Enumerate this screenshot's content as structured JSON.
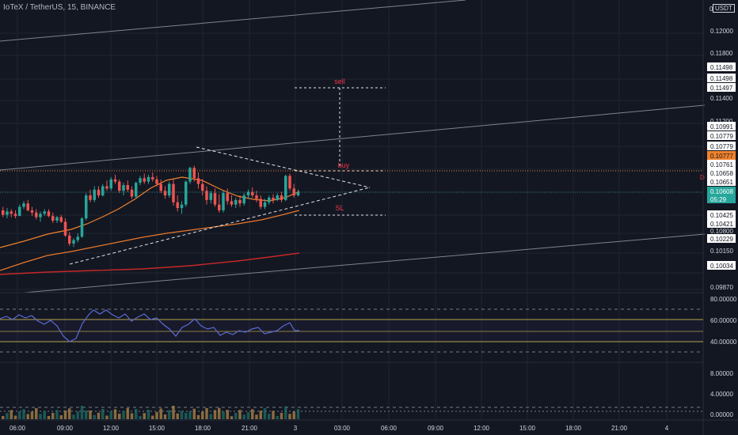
{
  "header": {
    "symbol_line": "IoTeX / TetherUS, 15, BINANCE",
    "currency": "USDT"
  },
  "colors": {
    "background": "#131722",
    "up": "#26a69a",
    "down": "#ef5350",
    "grid": "#1f2430",
    "axis_text": "#d1d4dc",
    "annotation": "#f23645",
    "rsi": "#5b6bd6",
    "ma_orange": "#f0822c",
    "ma_red": "#c62828"
  },
  "price_axis": {
    "ticks": [
      "0.12000",
      "0.11800",
      "0.11400",
      "0.11200",
      "0.10800",
      "0.10150",
      "0.09870"
    ],
    "labels": [
      {
        "text": "0.11498",
        "style": "white"
      },
      {
        "text": "0.11498",
        "style": "white"
      },
      {
        "text": "0.11497",
        "style": "white"
      },
      {
        "text": "0.10991",
        "style": "white"
      },
      {
        "text": "0.10779",
        "style": "white"
      },
      {
        "text": "0.10779",
        "style": "white"
      },
      {
        "text": "0.10777",
        "style": "orange"
      },
      {
        "text": "0.10761",
        "style": "white"
      },
      {
        "text": "0.10658",
        "style": "white"
      },
      {
        "text": "0.10651",
        "style": "white"
      },
      {
        "text": "0.10608",
        "style": "teal"
      },
      {
        "text": "05:29",
        "style": "teal"
      },
      {
        "text": "0.10425",
        "style": "white"
      },
      {
        "text": "0.10421",
        "style": "white"
      },
      {
        "text": "0.10229",
        "style": "white"
      },
      {
        "text": "0.10034",
        "style": "white"
      }
    ],
    "top_label": "0"
  },
  "annotations": {
    "sell": "sell",
    "buy": "buy",
    "sl": "SL",
    "right_marker": "D"
  },
  "rsi_axis": {
    "ticks": [
      "80.00000",
      "60.00000",
      "40.00000"
    ]
  },
  "volume_axis": {
    "ticks": [
      "8.00000",
      "4.00000",
      "0.00000"
    ]
  },
  "time_axis": {
    "ticks": [
      "06:00",
      "09:00",
      "12:00",
      "15:00",
      "18:00",
      "21:00",
      "3",
      "03:00",
      "06:00",
      "09:00",
      "12:00",
      "15:00",
      "18:00",
      "21:00",
      "4"
    ]
  },
  "chart_data": {
    "type": "candlestick",
    "last_price": 0.10608,
    "candles": [
      {
        "o": 0.1045,
        "h": 0.1048,
        "l": 0.1039,
        "c": 0.1041
      },
      {
        "o": 0.1041,
        "h": 0.1047,
        "l": 0.1038,
        "c": 0.1044
      },
      {
        "o": 0.1044,
        "h": 0.1046,
        "l": 0.1039,
        "c": 0.1042
      },
      {
        "o": 0.1042,
        "h": 0.1045,
        "l": 0.1038,
        "c": 0.104
      },
      {
        "o": 0.104,
        "h": 0.105,
        "l": 0.104,
        "c": 0.1048
      },
      {
        "o": 0.1048,
        "h": 0.1053,
        "l": 0.1046,
        "c": 0.1051
      },
      {
        "o": 0.1051,
        "h": 0.1054,
        "l": 0.1044,
        "c": 0.1045
      },
      {
        "o": 0.1045,
        "h": 0.1048,
        "l": 0.104,
        "c": 0.1043
      },
      {
        "o": 0.1043,
        "h": 0.1046,
        "l": 0.1037,
        "c": 0.1039
      },
      {
        "o": 0.1039,
        "h": 0.1044,
        "l": 0.1035,
        "c": 0.1042
      },
      {
        "o": 0.1042,
        "h": 0.1046,
        "l": 0.104,
        "c": 0.1044
      },
      {
        "o": 0.1044,
        "h": 0.1046,
        "l": 0.1039,
        "c": 0.104
      },
      {
        "o": 0.104,
        "h": 0.1043,
        "l": 0.1034,
        "c": 0.1036
      },
      {
        "o": 0.1036,
        "h": 0.104,
        "l": 0.1034,
        "c": 0.1039
      },
      {
        "o": 0.1039,
        "h": 0.1041,
        "l": 0.1034,
        "c": 0.1035
      },
      {
        "o": 0.1035,
        "h": 0.1038,
        "l": 0.1022,
        "c": 0.1023
      },
      {
        "o": 0.1023,
        "h": 0.1026,
        "l": 0.1014,
        "c": 0.1016
      },
      {
        "o": 0.1016,
        "h": 0.1021,
        "l": 0.1013,
        "c": 0.1019
      },
      {
        "o": 0.1019,
        "h": 0.1025,
        "l": 0.1017,
        "c": 0.1022
      },
      {
        "o": 0.1022,
        "h": 0.1039,
        "l": 0.1021,
        "c": 0.1038
      },
      {
        "o": 0.1038,
        "h": 0.106,
        "l": 0.1036,
        "c": 0.1058
      },
      {
        "o": 0.1058,
        "h": 0.1063,
        "l": 0.1052,
        "c": 0.1054
      },
      {
        "o": 0.1054,
        "h": 0.1066,
        "l": 0.1052,
        "c": 0.1063
      },
      {
        "o": 0.1063,
        "h": 0.1066,
        "l": 0.1056,
        "c": 0.1058
      },
      {
        "o": 0.1058,
        "h": 0.1068,
        "l": 0.1057,
        "c": 0.1066
      },
      {
        "o": 0.1066,
        "h": 0.1071,
        "l": 0.1062,
        "c": 0.1064
      },
      {
        "o": 0.1064,
        "h": 0.1074,
        "l": 0.1062,
        "c": 0.1072
      },
      {
        "o": 0.1072,
        "h": 0.1076,
        "l": 0.1068,
        "c": 0.107
      },
      {
        "o": 0.107,
        "h": 0.1072,
        "l": 0.106,
        "c": 0.1062
      },
      {
        "o": 0.1062,
        "h": 0.1069,
        "l": 0.1058,
        "c": 0.1067
      },
      {
        "o": 0.1067,
        "h": 0.1071,
        "l": 0.1061,
        "c": 0.1063
      },
      {
        "o": 0.1063,
        "h": 0.1066,
        "l": 0.1055,
        "c": 0.1057
      },
      {
        "o": 0.1057,
        "h": 0.107,
        "l": 0.1055,
        "c": 0.1069
      },
      {
        "o": 0.1069,
        "h": 0.1075,
        "l": 0.1067,
        "c": 0.1073
      },
      {
        "o": 0.1073,
        "h": 0.1077,
        "l": 0.1068,
        "c": 0.107
      },
      {
        "o": 0.107,
        "h": 0.1076,
        "l": 0.1068,
        "c": 0.1074
      },
      {
        "o": 0.1074,
        "h": 0.1078,
        "l": 0.107,
        "c": 0.1072
      },
      {
        "o": 0.1072,
        "h": 0.1075,
        "l": 0.1066,
        "c": 0.1068
      },
      {
        "o": 0.1068,
        "h": 0.1072,
        "l": 0.106,
        "c": 0.1062
      },
      {
        "o": 0.1062,
        "h": 0.1066,
        "l": 0.1055,
        "c": 0.1058
      },
      {
        "o": 0.1058,
        "h": 0.107,
        "l": 0.1056,
        "c": 0.1068
      },
      {
        "o": 0.1068,
        "h": 0.1072,
        "l": 0.1049,
        "c": 0.1052
      },
      {
        "o": 0.1052,
        "h": 0.1058,
        "l": 0.1044,
        "c": 0.1047
      },
      {
        "o": 0.1047,
        "h": 0.1053,
        "l": 0.1042,
        "c": 0.105
      },
      {
        "o": 0.105,
        "h": 0.1071,
        "l": 0.1048,
        "c": 0.107
      },
      {
        "o": 0.107,
        "h": 0.1083,
        "l": 0.1068,
        "c": 0.1082
      },
      {
        "o": 0.1082,
        "h": 0.1084,
        "l": 0.107,
        "c": 0.1073
      },
      {
        "o": 0.1073,
        "h": 0.1078,
        "l": 0.1064,
        "c": 0.1068
      },
      {
        "o": 0.1068,
        "h": 0.1072,
        "l": 0.1058,
        "c": 0.1062
      },
      {
        "o": 0.1062,
        "h": 0.1066,
        "l": 0.105,
        "c": 0.1054
      },
      {
        "o": 0.1054,
        "h": 0.1062,
        "l": 0.1051,
        "c": 0.106
      },
      {
        "o": 0.106,
        "h": 0.1064,
        "l": 0.1048,
        "c": 0.105
      },
      {
        "o": 0.105,
        "h": 0.1059,
        "l": 0.1043,
        "c": 0.1045
      },
      {
        "o": 0.1045,
        "h": 0.1062,
        "l": 0.1043,
        "c": 0.106
      },
      {
        "o": 0.106,
        "h": 0.1064,
        "l": 0.105,
        "c": 0.1053
      },
      {
        "o": 0.1053,
        "h": 0.1058,
        "l": 0.1048,
        "c": 0.105
      },
      {
        "o": 0.105,
        "h": 0.1056,
        "l": 0.1047,
        "c": 0.1054
      },
      {
        "o": 0.1054,
        "h": 0.1058,
        "l": 0.1048,
        "c": 0.1051
      },
      {
        "o": 0.1051,
        "h": 0.106,
        "l": 0.1049,
        "c": 0.1058
      },
      {
        "o": 0.1058,
        "h": 0.1063,
        "l": 0.1055,
        "c": 0.1061
      },
      {
        "o": 0.1061,
        "h": 0.1065,
        "l": 0.1056,
        "c": 0.1058
      },
      {
        "o": 0.1058,
        "h": 0.1062,
        "l": 0.1052,
        "c": 0.1055
      },
      {
        "o": 0.1055,
        "h": 0.1058,
        "l": 0.1046,
        "c": 0.1048
      },
      {
        "o": 0.1048,
        "h": 0.1055,
        "l": 0.1046,
        "c": 0.1052
      },
      {
        "o": 0.1052,
        "h": 0.1058,
        "l": 0.105,
        "c": 0.1056
      },
      {
        "o": 0.1056,
        "h": 0.1059,
        "l": 0.1051,
        "c": 0.1054
      },
      {
        "o": 0.1054,
        "h": 0.106,
        "l": 0.1053,
        "c": 0.1058
      },
      {
        "o": 0.1058,
        "h": 0.1061,
        "l": 0.1052,
        "c": 0.1054
      },
      {
        "o": 0.1054,
        "h": 0.1076,
        "l": 0.1053,
        "c": 0.1075
      },
      {
        "o": 0.1075,
        "h": 0.1077,
        "l": 0.1062,
        "c": 0.1064
      },
      {
        "o": 0.1064,
        "h": 0.1068,
        "l": 0.1056,
        "c": 0.1058
      },
      {
        "o": 0.1058,
        "h": 0.1063,
        "l": 0.1057,
        "c": 0.10608
      }
    ]
  }
}
